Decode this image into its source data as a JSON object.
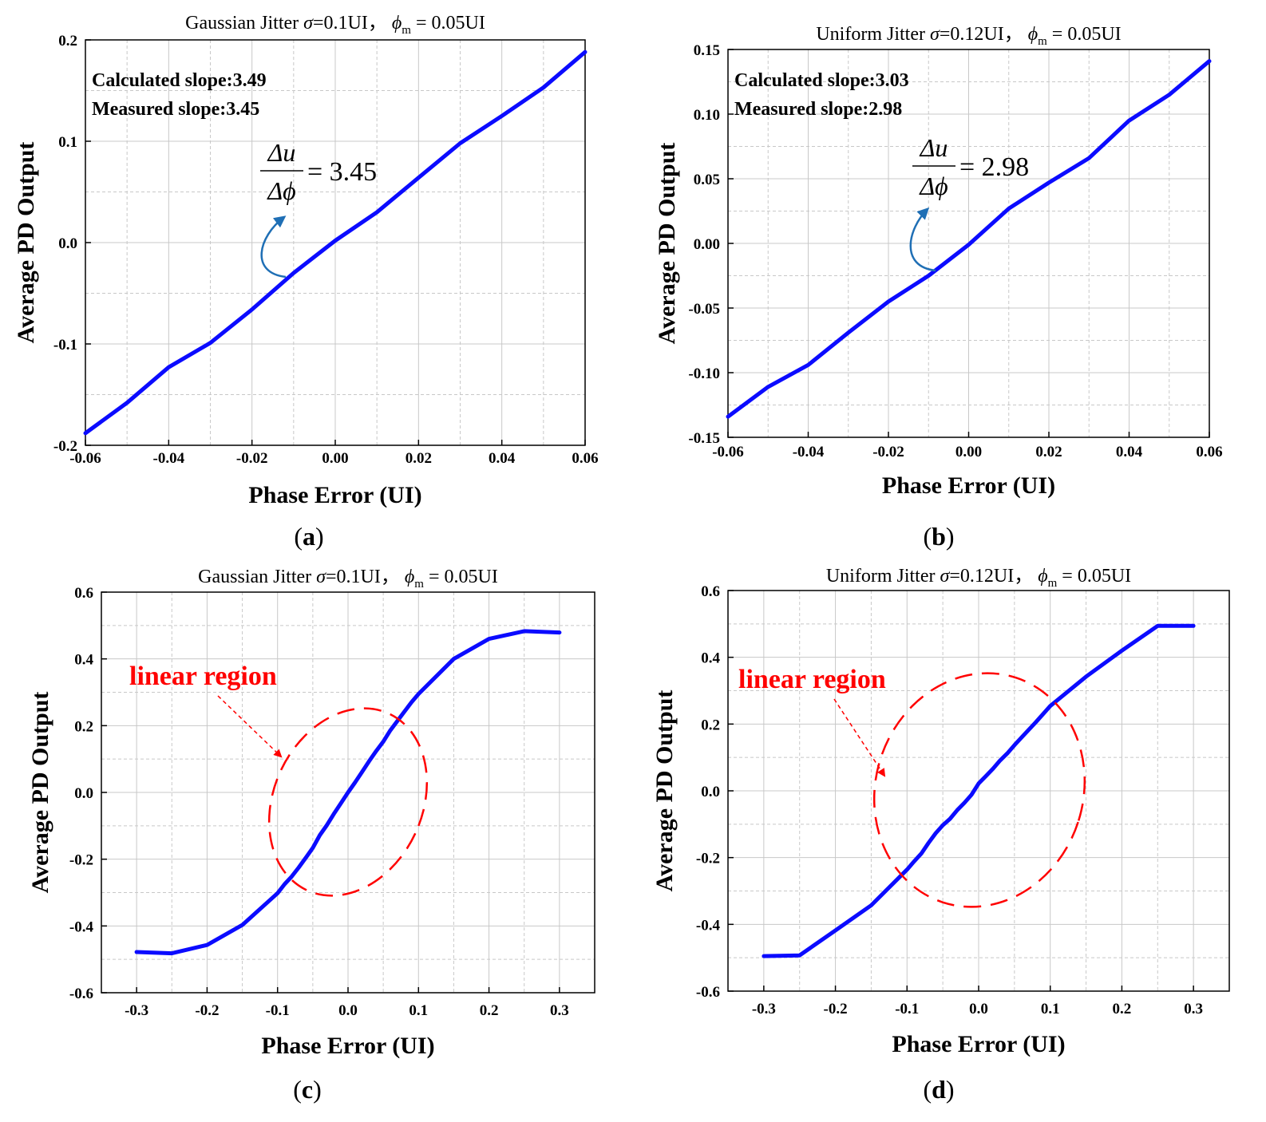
{
  "colors": {
    "series": "#0b0bff",
    "annotation_arrow": "#1f6fb5",
    "linear_region": "#ff0000",
    "grid": "#c8c8c8"
  },
  "chart_data": [
    {
      "id": "a",
      "type": "line",
      "title_prefix": "Gaussian Jitter",
      "title_sigma": "σ",
      "title_sigma_val": "=0.1UI，",
      "title_phi": "ϕ",
      "title_phi_sub": "m",
      "title_phi_val": " = 0.05UI",
      "xlabel": "Phase Error (UI)",
      "ylabel": "Average PD Output",
      "xlim": [
        -0.06,
        0.06
      ],
      "ylim": [
        -0.2,
        0.2
      ],
      "xticks": [
        "-0.06",
        "-0.04",
        "-0.02",
        "0.00",
        "0.02",
        "0.04",
        "0.06"
      ],
      "yticks": [
        "-0.2",
        "-0.1",
        "0.0",
        "0.1",
        "0.2"
      ],
      "x": [
        -0.06,
        -0.05,
        -0.04,
        -0.03,
        -0.02,
        -0.01,
        0.0,
        0.01,
        0.02,
        0.03,
        0.04,
        0.05,
        0.06
      ],
      "y": [
        -0.188,
        -0.158,
        -0.123,
        -0.099,
        -0.066,
        -0.03,
        0.002,
        0.03,
        0.064,
        0.098,
        0.125,
        0.153,
        0.188
      ],
      "annotations": {
        "calculated": "Calculated slope:3.49",
        "measured": "Measured  slope:3.45",
        "formula_num": "Δu",
        "formula_den": "Δϕ",
        "formula_val": "= 3.45"
      },
      "panel_letter": "a"
    },
    {
      "id": "b",
      "type": "line",
      "title_prefix": "Uniform Jitter",
      "title_sigma": "σ",
      "title_sigma_val": "=0.12UI，",
      "title_phi": "ϕ",
      "title_phi_sub": "m",
      "title_phi_val": " = 0.05UI",
      "xlabel": "Phase Error (UI)",
      "ylabel": "Average PD Output",
      "xlim": [
        -0.06,
        0.06
      ],
      "ylim": [
        -0.15,
        0.15
      ],
      "xticks": [
        "-0.06",
        "-0.04",
        "-0.02",
        "0.00",
        "0.02",
        "0.04",
        "0.06"
      ],
      "yticks": [
        "-0.15",
        "-0.10",
        "-0.05",
        "0.00",
        "0.05",
        "0.10",
        "0.15"
      ],
      "x": [
        -0.06,
        -0.05,
        -0.04,
        -0.03,
        -0.02,
        -0.01,
        0.0,
        0.01,
        0.02,
        0.03,
        0.04,
        0.05,
        0.06
      ],
      "y": [
        -0.134,
        -0.111,
        -0.094,
        -0.069,
        -0.045,
        -0.025,
        -0.001,
        0.027,
        0.047,
        0.066,
        0.095,
        0.115,
        0.141
      ],
      "annotations": {
        "calculated": "Calculated slope:3.03",
        "measured": "Measured  slope:2.98",
        "formula_num": "Δu",
        "formula_den": "Δϕ",
        "formula_val": "= 2.98"
      },
      "panel_letter": "b"
    },
    {
      "id": "c",
      "type": "line",
      "title_prefix": "Gaussian Jitter",
      "title_sigma": "σ",
      "title_sigma_val": "=0.1UI，",
      "title_phi": "ϕ",
      "title_phi_sub": "m",
      "title_phi_val": " = 0.05UI",
      "xlabel": "Phase Error (UI)",
      "ylabel": "Average PD Output",
      "xlim": [
        -0.35,
        0.35
      ],
      "ylim": [
        -0.6,
        0.6
      ],
      "xticks": [
        "-0.3",
        "-0.2",
        "-0.1",
        "0.0",
        "0.1",
        "0.2",
        "0.3"
      ],
      "yticks": [
        "-0.6",
        "-0.4",
        "-0.2",
        "0.0",
        "0.2",
        "0.4",
        "0.6"
      ],
      "x": [
        -0.3,
        -0.25,
        -0.2,
        -0.15,
        -0.1,
        -0.09,
        -0.08,
        -0.07,
        -0.06,
        -0.05,
        -0.04,
        -0.03,
        -0.02,
        -0.01,
        0.0,
        0.01,
        0.02,
        0.03,
        0.04,
        0.05,
        0.06,
        0.07,
        0.08,
        0.09,
        0.1,
        0.15,
        0.2,
        0.25,
        0.3
      ],
      "y": [
        -0.478,
        -0.482,
        -0.457,
        -0.397,
        -0.302,
        -0.275,
        -0.252,
        -0.225,
        -0.196,
        -0.166,
        -0.128,
        -0.098,
        -0.064,
        -0.032,
        0.0,
        0.03,
        0.062,
        0.094,
        0.124,
        0.152,
        0.186,
        0.214,
        0.242,
        0.27,
        0.295,
        0.4,
        0.46,
        0.483,
        0.479
      ],
      "annotations": {
        "linear_region": "linear region"
      },
      "panel_letter": "c"
    },
    {
      "id": "d",
      "type": "line",
      "title_prefix": "Uniform Jitter ",
      "title_sigma": "σ",
      "title_sigma_val": "=0.12UI，",
      "title_phi": "ϕ",
      "title_phi_sub": "m",
      "title_phi_val": " = 0.05UI",
      "xlabel": "Phase Error (UI)",
      "ylabel": "Average PD Output",
      "xlim": [
        -0.35,
        0.35
      ],
      "ylim": [
        -0.6,
        0.6
      ],
      "xticks": [
        "-0.3",
        "-0.2",
        "-0.1",
        "0.0",
        "0.1",
        "0.2",
        "0.3"
      ],
      "yticks": [
        "-0.6",
        "-0.4",
        "-0.2",
        "0.0",
        "0.2",
        "0.4",
        "0.6"
      ],
      "x": [
        -0.3,
        -0.25,
        -0.2,
        -0.15,
        -0.1,
        -0.09,
        -0.08,
        -0.07,
        -0.06,
        -0.05,
        -0.04,
        -0.03,
        -0.02,
        -0.01,
        0.0,
        0.01,
        0.02,
        0.03,
        0.04,
        0.05,
        0.06,
        0.07,
        0.08,
        0.09,
        0.1,
        0.15,
        0.2,
        0.25,
        0.3
      ],
      "y": [
        -0.495,
        -0.493,
        -0.418,
        -0.343,
        -0.236,
        -0.211,
        -0.188,
        -0.156,
        -0.127,
        -0.103,
        -0.084,
        -0.058,
        -0.036,
        -0.012,
        0.022,
        0.044,
        0.066,
        0.091,
        0.112,
        0.137,
        0.16,
        0.183,
        0.206,
        0.23,
        0.254,
        0.342,
        0.42,
        0.494,
        0.494
      ],
      "annotations": {
        "linear_region": "linear region"
      },
      "panel_letter": "d"
    }
  ]
}
